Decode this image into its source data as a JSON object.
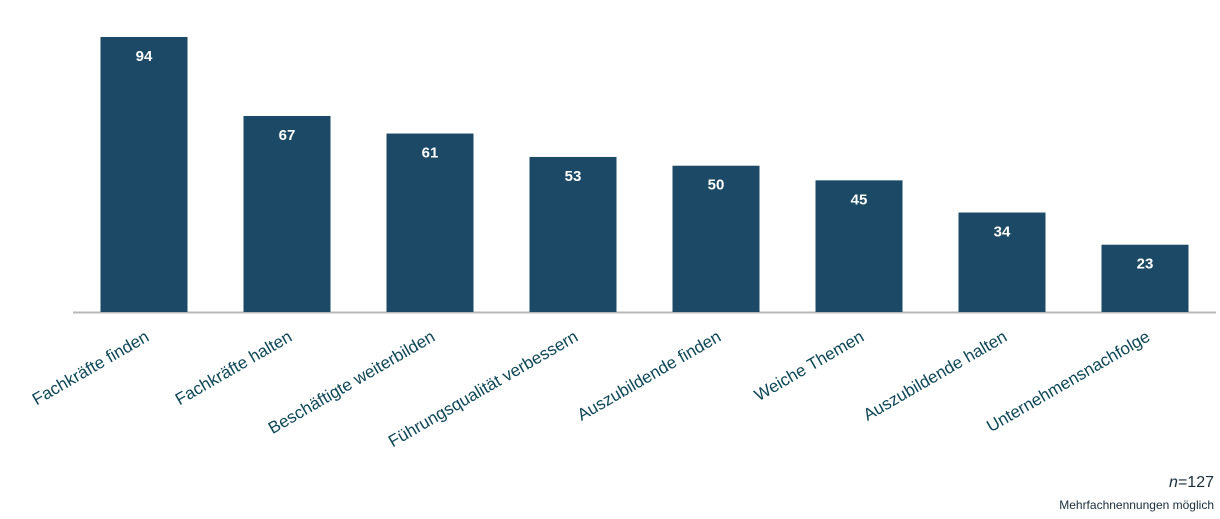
{
  "chart_data": {
    "type": "bar",
    "categories": [
      "Fachkräfte finden",
      "Fachkräfte halten",
      "Beschäftigte weiterbilden",
      "Führungsqualität verbessern",
      "Auszubildende finden",
      "Weiche Themen",
      "Auszubildende halten",
      "Unternehmensnachfolge"
    ],
    "values": [
      94,
      67,
      61,
      53,
      50,
      45,
      34,
      23
    ],
    "color": "#1b4966",
    "note_variable": "n",
    "note_value": "=127",
    "note": "Mehrfachnennungen möglich"
  }
}
